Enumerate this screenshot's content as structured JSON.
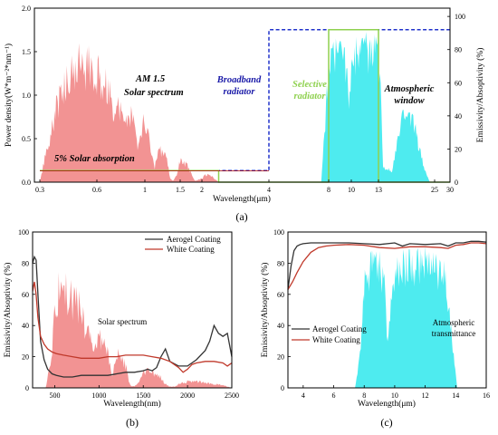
{
  "panel_labels": [
    "(a)",
    "(b)",
    "(c)"
  ],
  "chart_data": [
    {
      "type": "area",
      "panel": "(a)",
      "xlabel": "Wavelength(μm)",
      "ylabel": "Power density(W*m⁻²*nm⁻¹)",
      "y2label": "Emissivity/Absoptivity (%)",
      "x_ticks": [
        "0.3",
        "0.6",
        "1",
        "1.5",
        "2",
        "4",
        "8",
        "10",
        "13",
        "25",
        "30"
      ],
      "y_ticks": [
        "0.0",
        "0.5",
        "1.0",
        "1.5",
        "2.0"
      ],
      "y2_ticks": [
        "0",
        "20",
        "40",
        "60",
        "80",
        "100"
      ],
      "ylim": [
        0,
        2.0
      ],
      "y2lim": [
        0,
        105
      ],
      "annotations": {
        "solar": "AM 1.5",
        "solar2": "Solar spectrum",
        "broadband": "Broadband",
        "broadband2": "radiator",
        "selective": "Selective",
        "selective2": "radiator",
        "window": "Atmospheric",
        "window2": "window",
        "absorption": "5% Solar absorption"
      },
      "solar_spectrum": {
        "color": "#f08080",
        "x": [
          0.3,
          0.32,
          0.35,
          0.38,
          0.42,
          0.46,
          0.5,
          0.55,
          0.6,
          0.65,
          0.7,
          0.76,
          0.8,
          0.85,
          0.9,
          0.94,
          0.98,
          1.05,
          1.1,
          1.14,
          1.2,
          1.25,
          1.3,
          1.36,
          1.4,
          1.45,
          1.5,
          1.6,
          1.7,
          1.8,
          1.85,
          2.0,
          2.1,
          2.2,
          2.3,
          2.5
        ],
        "y": [
          0.0,
          0.25,
          0.6,
          0.95,
          1.3,
          1.55,
          1.6,
          1.58,
          1.5,
          1.42,
          1.3,
          0.9,
          1.1,
          0.95,
          0.85,
          0.55,
          0.8,
          0.65,
          0.4,
          0.2,
          0.48,
          0.42,
          0.38,
          0.05,
          0.02,
          0.1,
          0.3,
          0.27,
          0.2,
          0.05,
          0.02,
          0.05,
          0.1,
          0.1,
          0.08,
          0.0
        ]
      },
      "window_spectrum": {
        "color": "#2fe8ec",
        "x": [
          7.5,
          8.0,
          8.5,
          9.0,
          9.5,
          9.8,
          10.0,
          10.5,
          11.0,
          11.5,
          12.0,
          12.5,
          13.0,
          13.5,
          14.0,
          16.0,
          17.0,
          18.0,
          19.0,
          20.0,
          21.0,
          22.0,
          23.0,
          24.0
        ],
        "y": [
          0,
          78,
          88,
          90,
          84,
          60,
          86,
          92,
          94,
          94,
          92,
          90,
          88,
          60,
          10,
          8,
          30,
          48,
          50,
          45,
          35,
          20,
          8,
          0
        ]
      },
      "series": [
        {
          "name": "Broadband radiator",
          "color": "#2233cc",
          "x": [
            0.3,
            4.0,
            4.0,
            30.0
          ],
          "y": [
            7,
            7,
            92,
            92
          ]
        },
        {
          "name": "Selective radiator",
          "color": "#8fd14f",
          "x": [
            0.3,
            2.5,
            2.5,
            8.0,
            8.0,
            13.0,
            13.0,
            30.0
          ],
          "y": [
            7,
            7,
            0,
            0,
            92,
            92,
            0,
            0
          ]
        }
      ],
      "absorption_bar": {
        "color": "#aa0000",
        "x": [
          0.3,
          4.0
        ],
        "y": 0.13
      }
    },
    {
      "type": "line",
      "panel": "(b)",
      "xlabel": "Wavelength(nm)",
      "ylabel": "Emissivity/Absoptivity (%)",
      "x_ticks": [
        "500",
        "1000",
        "1500",
        "2000",
        "2500"
      ],
      "y_ticks": [
        "0",
        "20",
        "40",
        "60",
        "80",
        "100"
      ],
      "xlim": [
        250,
        2500
      ],
      "ylim": [
        0,
        100
      ],
      "annotation": "Solar spectrum",
      "legend_position": "top-right",
      "background_spectrum": {
        "color": "#f08080",
        "x": [
          250,
          300,
          400,
          450,
          500,
          550,
          600,
          650,
          700,
          750,
          800,
          850,
          900,
          950,
          1000,
          1050,
          1100,
          1150,
          1200,
          1250,
          1300,
          1350,
          1400,
          1450,
          1500,
          1550,
          1600,
          1650,
          1700,
          1750,
          1800,
          1850,
          1900,
          2000,
          2100,
          2200,
          2300,
          2400,
          2500
        ],
        "y": [
          0,
          0,
          0,
          20,
          55,
          78,
          80,
          75,
          72,
          65,
          60,
          50,
          45,
          30,
          40,
          40,
          30,
          10,
          28,
          25,
          18,
          2,
          1,
          5,
          14,
          13,
          12,
          10,
          8,
          3,
          1,
          1,
          3,
          5,
          5,
          4,
          3,
          2,
          0
        ]
      },
      "series": [
        {
          "name": "Aerogel Coating",
          "color": "#333333",
          "x": [
            250,
            270,
            290,
            310,
            340,
            380,
            420,
            470,
            520,
            600,
            700,
            800,
            900,
            1000,
            1100,
            1200,
            1300,
            1400,
            1500,
            1550,
            1600,
            1650,
            1700,
            1750,
            1800,
            1900,
            2000,
            2100,
            2200,
            2250,
            2300,
            2350,
            2400,
            2450,
            2500
          ],
          "y": [
            80,
            84,
            82,
            60,
            30,
            18,
            12,
            9,
            8,
            7,
            7,
            8,
            8,
            8,
            8,
            9,
            10,
            10,
            11,
            12,
            11,
            13,
            20,
            25,
            17,
            14,
            14,
            18,
            24,
            30,
            40,
            35,
            33,
            35,
            20
          ]
        },
        {
          "name": "White Coating",
          "color": "#c0392b",
          "x": [
            250,
            270,
            290,
            310,
            340,
            380,
            420,
            470,
            520,
            600,
            700,
            800,
            900,
            1000,
            1100,
            1200,
            1300,
            1400,
            1500,
            1600,
            1700,
            1800,
            1900,
            1950,
            2000,
            2050,
            2100,
            2200,
            2300,
            2400,
            2450,
            2500
          ],
          "y": [
            62,
            68,
            60,
            45,
            33,
            28,
            25,
            23,
            22,
            21,
            20,
            19,
            19,
            19,
            20,
            20,
            21,
            21,
            21,
            20,
            19,
            17,
            13,
            10,
            12,
            15,
            16,
            17,
            17,
            16,
            14,
            16
          ]
        }
      ]
    },
    {
      "type": "line",
      "panel": "(c)",
      "xlabel": "Wavelength(μm)",
      "ylabel": "Emissivity/Absoptivity (%)",
      "x_ticks": [
        "4",
        "6",
        "8",
        "10",
        "12",
        "14",
        "16"
      ],
      "y_ticks": [
        "0",
        "20",
        "40",
        "60",
        "80",
        "100"
      ],
      "xlim": [
        3,
        16
      ],
      "ylim": [
        0,
        100
      ],
      "annotation": "Atmospheric",
      "annotation2": "transmittance",
      "legend_position": "center-left",
      "background_spectrum": {
        "color": "#2fe8ec",
        "x": [
          7.4,
          7.8,
          8.0,
          8.3,
          8.6,
          9.0,
          9.3,
          9.5,
          9.7,
          10.0,
          10.3,
          10.6,
          11.0,
          11.5,
          12.0,
          12.5,
          13.0,
          13.3,
          13.6,
          13.9,
          14.1
        ],
        "y": [
          0,
          30,
          82,
          88,
          90,
          89,
          82,
          40,
          55,
          85,
          88,
          90,
          92,
          92,
          91,
          90,
          88,
          80,
          55,
          20,
          0
        ]
      },
      "series": [
        {
          "name": "Aerogel Coating",
          "color": "#333333",
          "x": [
            3.0,
            3.2,
            3.4,
            3.6,
            3.8,
            4.0,
            4.5,
            5.0,
            6.0,
            7.0,
            8.0,
            9.0,
            10.0,
            10.5,
            11.0,
            12.0,
            13.0,
            13.5,
            14.0,
            14.5,
            15.0,
            15.5,
            16.0
          ],
          "y": [
            63,
            78,
            88,
            91,
            92,
            92.5,
            93,
            93,
            93,
            93,
            92.5,
            92,
            93,
            91,
            92.5,
            92,
            92.5,
            91,
            93,
            93,
            94,
            94,
            93.5
          ]
        },
        {
          "name": "White Coating",
          "color": "#c0392b",
          "x": [
            3.0,
            3.3,
            3.6,
            4.0,
            4.5,
            5.0,
            5.5,
            6.0,
            7.0,
            8.0,
            9.0,
            10.0,
            11.0,
            12.0,
            13.0,
            13.5,
            14.0,
            14.5,
            15.0,
            15.5,
            16.0
          ],
          "y": [
            63,
            68,
            74,
            81,
            87,
            90,
            91,
            91.5,
            92,
            91.5,
            90,
            89.5,
            90.5,
            90.5,
            90,
            89.5,
            91.5,
            92,
            93,
            93,
            92.5
          ]
        }
      ]
    }
  ]
}
